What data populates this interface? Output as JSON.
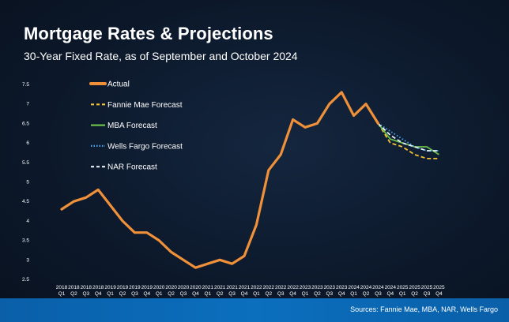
{
  "title": "Mortgage Rates & Projections",
  "subtitle": "30-Year Fixed Rate, as of September and October 2024",
  "source": "Sources: Fannie Mae, MBA, NAR, Wells Fargo",
  "chart_data": {
    "type": "line",
    "x": [
      [
        "2018",
        "Q1"
      ],
      [
        "2018",
        "Q2"
      ],
      [
        "2018",
        "Q3"
      ],
      [
        "2018",
        "Q4"
      ],
      [
        "2019",
        "Q1"
      ],
      [
        "2019",
        "Q2"
      ],
      [
        "2019",
        "Q3"
      ],
      [
        "2019",
        "Q4"
      ],
      [
        "2020",
        "Q1"
      ],
      [
        "2020",
        "Q2"
      ],
      [
        "2020",
        "Q3"
      ],
      [
        "2020",
        "Q4"
      ],
      [
        "2021",
        "Q1"
      ],
      [
        "2021",
        "Q2"
      ],
      [
        "2021",
        "Q3"
      ],
      [
        "2021",
        "Q4"
      ],
      [
        "2022",
        "Q1"
      ],
      [
        "2022",
        "Q2"
      ],
      [
        "2022",
        "Q3"
      ],
      [
        "2022",
        "Q4"
      ],
      [
        "2023",
        "Q1"
      ],
      [
        "2023",
        "Q2"
      ],
      [
        "2023",
        "Q3"
      ],
      [
        "2023",
        "Q4"
      ],
      [
        "2024",
        "Q1"
      ],
      [
        "2024",
        "Q2"
      ],
      [
        "2024",
        "Q3"
      ],
      [
        "2024",
        "Q4"
      ],
      [
        "2025",
        "Q1"
      ],
      [
        "2025",
        "Q2"
      ],
      [
        "2025",
        "Q3"
      ],
      [
        "2025",
        "Q4"
      ]
    ],
    "yticks": [
      "2.5",
      "3",
      "3.5",
      "4",
      "4.5",
      "5",
      "5.5",
      "6",
      "6.5",
      "7",
      "7.5"
    ],
    "ylim": [
      2.5,
      7.5
    ],
    "grid": false,
    "legend_position": "top-left",
    "series": [
      {
        "name": "Actual",
        "color": "#f0913a",
        "style": "solid",
        "values": [
          4.3,
          4.5,
          4.6,
          4.8,
          4.4,
          4.0,
          3.7,
          3.7,
          3.5,
          3.2,
          3.0,
          2.8,
          2.9,
          3.0,
          2.9,
          3.1,
          3.9,
          5.3,
          5.7,
          6.6,
          6.4,
          6.5,
          7.0,
          7.3,
          6.7,
          7.0,
          6.5,
          null,
          null,
          null,
          null,
          null
        ]
      },
      {
        "name": "Fannie Mae Forecast",
        "color": "#f6c232",
        "style": "dashed",
        "values": [
          null,
          null,
          null,
          null,
          null,
          null,
          null,
          null,
          null,
          null,
          null,
          null,
          null,
          null,
          null,
          null,
          null,
          null,
          null,
          null,
          null,
          null,
          null,
          null,
          null,
          null,
          6.5,
          6.0,
          5.9,
          5.7,
          5.6,
          5.6
        ]
      },
      {
        "name": "MBA Forecast",
        "color": "#6abf4b",
        "style": "solid",
        "values": [
          null,
          null,
          null,
          null,
          null,
          null,
          null,
          null,
          null,
          null,
          null,
          null,
          null,
          null,
          null,
          null,
          null,
          null,
          null,
          null,
          null,
          null,
          null,
          null,
          null,
          null,
          6.5,
          6.1,
          6.0,
          5.9,
          5.9,
          5.7
        ]
      },
      {
        "name": "Wells Fargo Forecast",
        "color": "#4aa6ec",
        "style": "dotted",
        "values": [
          null,
          null,
          null,
          null,
          null,
          null,
          null,
          null,
          null,
          null,
          null,
          null,
          null,
          null,
          null,
          null,
          null,
          null,
          null,
          null,
          null,
          null,
          null,
          null,
          null,
          null,
          6.5,
          6.3,
          6.1,
          5.9,
          5.8,
          5.8
        ]
      },
      {
        "name": "NAR Forecast",
        "color": "#e8eef7",
        "style": "dashed",
        "values": [
          null,
          null,
          null,
          null,
          null,
          null,
          null,
          null,
          null,
          null,
          null,
          null,
          null,
          null,
          null,
          null,
          null,
          null,
          null,
          null,
          null,
          null,
          null,
          null,
          null,
          null,
          6.5,
          6.2,
          6.0,
          5.9,
          5.8,
          5.8
        ]
      }
    ]
  }
}
